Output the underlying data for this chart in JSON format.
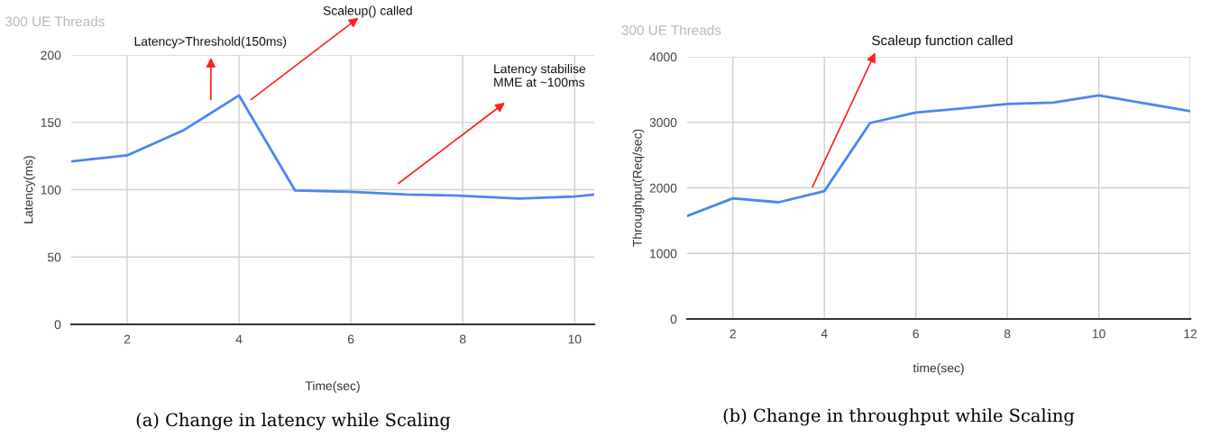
{
  "chart_data": [
    {
      "type": "line",
      "title": "300 UE Threads",
      "xlabel": "Time(sec)",
      "ylabel": "Latency(ms)",
      "x": [
        1,
        2,
        3,
        4,
        5,
        6,
        7,
        8,
        9,
        10,
        10.35
      ],
      "series": [
        {
          "color": "#4a86f0",
          "values": [
            121,
            125.5,
            144,
            170,
            99.5,
            98.5,
            96.5,
            95.5,
            93.5,
            95,
            96.5
          ]
        }
      ],
      "xlim": [
        1,
        10.35
      ],
      "xticks": [
        2,
        4,
        6,
        8,
        10
      ],
      "ylim": [
        0,
        200
      ],
      "yticks": [
        0,
        50,
        100,
        150,
        200
      ],
      "grid": true,
      "legend": false,
      "annotations": [
        "Latency>Threshold(150ms)",
        "Scaleup() called",
        "Latency stabilise\nMME at ~100ms",
        "(a) Change in latency while Scaling"
      ]
    },
    {
      "type": "line",
      "title": "300 UE Threads",
      "xlabel": "time(sec)",
      "ylabel": "Throughput(Req/sec)",
      "x": [
        1,
        2,
        3,
        4,
        5,
        6,
        7,
        8,
        9,
        10,
        12
      ],
      "series": [
        {
          "color": "#4a86f0",
          "values": [
            1570,
            1840,
            1780,
            1950,
            2990,
            3150,
            3210,
            3280,
            3300,
            3410,
            3170
          ]
        }
      ],
      "xlim": [
        1,
        12
      ],
      "xticks": [
        2,
        4,
        6,
        8,
        10,
        12
      ],
      "ylim": [
        0,
        4000
      ],
      "yticks": [
        0,
        1000,
        2000,
        3000,
        4000
      ],
      "grid": true,
      "legend": false,
      "annotations": [
        "Scaleup function called",
        "(b) Change in throughput while Scaling"
      ]
    }
  ]
}
